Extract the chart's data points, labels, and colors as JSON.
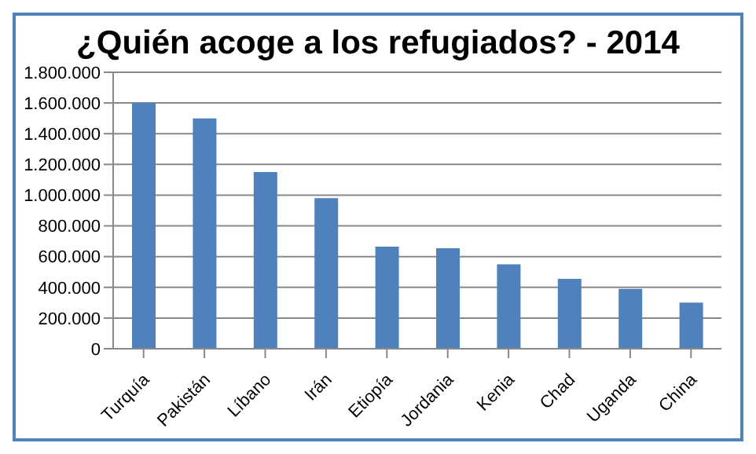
{
  "chart_data": {
    "type": "bar",
    "title": "¿Quién acoge a los refugiados? - 2014",
    "categories": [
      "Turquía",
      "Pakistán",
      "Líbano",
      "Irán",
      "Etiopía",
      "Jordania",
      "Kenia",
      "Chad",
      "Uganda",
      "China"
    ],
    "values": [
      1600000,
      1500000,
      1150000,
      980000,
      665000,
      655000,
      550000,
      455000,
      390000,
      300000
    ],
    "color": "#4f81bd",
    "ylim": [
      0,
      1800000
    ],
    "yticks": [
      0,
      {
        "value": 200000,
        "label": "200.000"
      },
      {
        "value": 400000,
        "label": "400.000"
      },
      {
        "value": 600000,
        "label": "600.000"
      },
      {
        "value": 800000,
        "label": "800.000"
      },
      {
        "value": 1000000,
        "label": "1.000.000"
      },
      {
        "value": 1200000,
        "label": "1.200.000"
      },
      {
        "value": 1400000,
        "label": "1.400.000"
      },
      {
        "value": 1600000,
        "label": "1.600.000"
      },
      {
        "value": 1800000,
        "label": "1.800.000"
      }
    ],
    "grid": "y"
  }
}
